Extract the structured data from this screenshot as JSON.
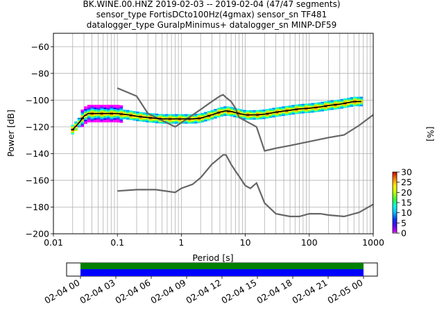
{
  "title_lines": [
    "BK.WINE.00.HNZ   2019-02-03 -- 2019-02-04  (47/47 segments)",
    "sensor_type FortisDCto100Hz(4gmax) sensor_sn TF481",
    "datalogger_type GuralpMinimus+ datalogger_sn MINP-DF59"
  ],
  "chart_data": {
    "type": "heatmap",
    "title": "BK.WINE.00.HNZ   2019-02-03 -- 2019-02-04  (47/47 segments)",
    "xlabel": "Period [s]",
    "ylabel": "Power [dB]",
    "x_scale": "log",
    "xlim": [
      0.01,
      1000
    ],
    "ylim": [
      -200,
      -50
    ],
    "x_ticks": [
      0.01,
      0.1,
      1,
      10,
      100,
      1000
    ],
    "x_tick_labels": [
      "0.01",
      "0.1",
      "1",
      "10",
      "100",
      "1000"
    ],
    "y_ticks": [
      -60,
      -80,
      -100,
      -120,
      -140,
      -160,
      -180,
      -200
    ],
    "grid": true,
    "colorbar": {
      "label": "[%]",
      "min": 0,
      "max": 30,
      "ticks": [
        0,
        5,
        10,
        15,
        20,
        25,
        30
      ]
    },
    "series": [
      {
        "x": [
          0.02,
          0.023,
          0.026,
          0.03,
          0.035,
          0.04,
          0.05,
          0.07,
          0.1,
          0.15,
          0.2,
          0.3,
          0.5,
          0.8,
          1,
          1.5,
          2,
          3,
          4,
          5,
          6,
          8,
          10,
          15,
          20,
          30,
          50,
          70,
          100,
          150,
          200,
          300,
          500,
          650
        ],
        "y": [
          -122,
          -119,
          -116,
          -112,
          -110,
          -110,
          -110,
          -110,
          -110,
          -111,
          -112,
          -113,
          -114,
          -114,
          -114,
          -114,
          -113.5,
          -111,
          -109,
          -108,
          -108.5,
          -110,
          -111,
          -111,
          -110.5,
          -109,
          -107.5,
          -106.5,
          -106,
          -105,
          -104,
          -103,
          -101,
          -101
        ]
      },
      {
        "x": [
          0.1,
          0.2,
          0.3,
          0.8,
          2,
          3,
          4,
          4.5,
          5,
          6,
          7,
          8,
          15,
          20,
          30,
          50,
          100,
          200,
          350,
          600,
          1000
        ],
        "y": [
          -91,
          -97,
          -110,
          -120,
          -107,
          -101,
          -97,
          -96,
          -98,
          -101,
          -106,
          -113,
          -120,
          -138,
          -136,
          -134,
          -131,
          -128,
          -126,
          -119,
          -111
        ]
      },
      {
        "x": [
          0.1,
          0.2,
          0.3,
          0.4,
          0.8,
          1,
          1.5,
          2,
          3,
          4,
          4.5,
          5,
          6,
          7,
          8,
          10,
          12,
          15,
          20,
          30,
          50,
          70,
          100,
          150,
          200,
          350,
          600,
          1000
        ],
        "y": [
          -168,
          -167,
          -167,
          -167,
          -169,
          -166,
          -163,
          -158,
          -148,
          -143,
          -141,
          -141,
          -148,
          -153,
          -157,
          -164,
          -166,
          -162,
          -177,
          -185,
          -187,
          -187,
          -185,
          -185,
          -186,
          -187,
          -184,
          -178
        ]
      }
    ],
    "timeline": {
      "tick_labels": [
        "02-04 00",
        "02-04 03",
        "02-04 06",
        "02-04 09",
        "02-04 12",
        "02-04 15",
        "02-04 18",
        "02-04 21",
        "02-05 00"
      ],
      "coverage_colors": [
        "#008000",
        "#0000ff"
      ]
    }
  }
}
